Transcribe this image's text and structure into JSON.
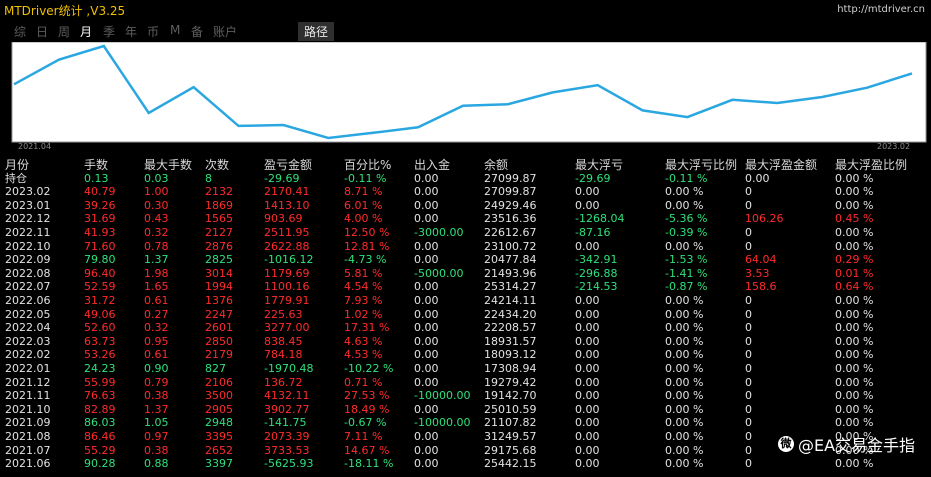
{
  "app": {
    "title": "MTDriver统计 ,V3.25",
    "url": "http://mtdriver.cn"
  },
  "tabs": [
    "综",
    "日",
    "周",
    "月",
    "季",
    "年",
    "币",
    "M",
    "备",
    "账户"
  ],
  "active_tab": "月",
  "path_tab": "路径",
  "chart": {
    "start_label": "2021.04",
    "end_label": "2023.02",
    "line_color": "#2aa7e0"
  },
  "table": {
    "headers": [
      "月份",
      "手数",
      "最大手数",
      "次数",
      "盈亏金额",
      "百分比%",
      "出入金",
      "余额",
      "最大浮亏",
      "最大浮亏比例",
      "最大浮盈金额",
      "最大浮盈比例"
    ],
    "position_row": {
      "label": "持仓",
      "lots": "0.13",
      "max_lots": "0.03",
      "count": "8",
      "pl": "-29.69",
      "pct": "-0.11 %",
      "inout": "0.00",
      "balance": "27099.87",
      "max_dd": "-29.69",
      "max_dd_pct": "-0.11 %",
      "max_fp": "0.00",
      "max_fp_pct": "0.00 %"
    },
    "rows": [
      {
        "month": "2023.02",
        "lots": "40.79",
        "max_lots": "1.00",
        "count": "2132",
        "pl": "2170.41",
        "pct": "8.71 %",
        "inout": "0.00",
        "balance": "27099.87",
        "max_dd": "0.00",
        "max_dd_pct": "0.00 %",
        "max_fp": "0",
        "max_fp_pct": "0.00 %",
        "tone": "red"
      },
      {
        "month": "2023.01",
        "lots": "39.26",
        "max_lots": "0.30",
        "count": "1869",
        "pl": "1413.10",
        "pct": "6.01 %",
        "inout": "0.00",
        "balance": "24929.46",
        "max_dd": "0.00",
        "max_dd_pct": "0.00 %",
        "max_fp": "0",
        "max_fp_pct": "0.00 %",
        "tone": "red"
      },
      {
        "month": "2022.12",
        "lots": "31.69",
        "max_lots": "0.43",
        "count": "1565",
        "pl": "903.69",
        "pct": "4.00 %",
        "inout": "0.00",
        "balance": "23516.36",
        "max_dd": "-1268.04",
        "max_dd_pct": "-5.36 %",
        "max_fp": "106.26",
        "max_fp_pct": "0.45 %",
        "tone": "red"
      },
      {
        "month": "2022.11",
        "lots": "41.93",
        "max_lots": "0.32",
        "count": "2127",
        "pl": "2511.95",
        "pct": "12.50 %",
        "inout": "-3000.00",
        "balance": "22612.67",
        "max_dd": "-87.16",
        "max_dd_pct": "-0.39 %",
        "max_fp": "0",
        "max_fp_pct": "0.00 %",
        "tone": "red"
      },
      {
        "month": "2022.10",
        "lots": "71.60",
        "max_lots": "0.78",
        "count": "2876",
        "pl": "2622.88",
        "pct": "12.81 %",
        "inout": "0.00",
        "balance": "23100.72",
        "max_dd": "0.00",
        "max_dd_pct": "0.00 %",
        "max_fp": "0",
        "max_fp_pct": "0.00 %",
        "tone": "red"
      },
      {
        "month": "2022.09",
        "lots": "79.80",
        "max_lots": "1.37",
        "count": "2825",
        "pl": "-1016.12",
        "pct": "-4.73 %",
        "inout": "0.00",
        "balance": "20477.84",
        "max_dd": "-342.91",
        "max_dd_pct": "-1.53 %",
        "max_fp": "64.04",
        "max_fp_pct": "0.29 %",
        "tone": "green"
      },
      {
        "month": "2022.08",
        "lots": "96.40",
        "max_lots": "1.98",
        "count": "3014",
        "pl": "1179.69",
        "pct": "5.81 %",
        "inout": "-5000.00",
        "balance": "21493.96",
        "max_dd": "-296.88",
        "max_dd_pct": "-1.41 %",
        "max_fp": "3.53",
        "max_fp_pct": "0.01 %",
        "tone": "red"
      },
      {
        "month": "2022.07",
        "lots": "52.59",
        "max_lots": "1.65",
        "count": "1994",
        "pl": "1100.16",
        "pct": "4.54 %",
        "inout": "0.00",
        "balance": "25314.27",
        "max_dd": "-214.53",
        "max_dd_pct": "-0.87 %",
        "max_fp": "158.6",
        "max_fp_pct": "0.64 %",
        "tone": "red"
      },
      {
        "month": "2022.06",
        "lots": "31.72",
        "max_lots": "0.61",
        "count": "1376",
        "pl": "1779.91",
        "pct": "7.93 %",
        "inout": "0.00",
        "balance": "24214.11",
        "max_dd": "0.00",
        "max_dd_pct": "0.00 %",
        "max_fp": "0",
        "max_fp_pct": "0.00 %",
        "tone": "red"
      },
      {
        "month": "2022.05",
        "lots": "49.06",
        "max_lots": "0.27",
        "count": "2247",
        "pl": "225.63",
        "pct": "1.02 %",
        "inout": "0.00",
        "balance": "22434.20",
        "max_dd": "0.00",
        "max_dd_pct": "0.00 %",
        "max_fp": "0",
        "max_fp_pct": "0.00 %",
        "tone": "red"
      },
      {
        "month": "2022.04",
        "lots": "52.60",
        "max_lots": "0.32",
        "count": "2601",
        "pl": "3277.00",
        "pct": "17.31 %",
        "inout": "0.00",
        "balance": "22208.57",
        "max_dd": "0.00",
        "max_dd_pct": "0.00 %",
        "max_fp": "0",
        "max_fp_pct": "0.00 %",
        "tone": "red"
      },
      {
        "month": "2022.03",
        "lots": "63.73",
        "max_lots": "0.95",
        "count": "2850",
        "pl": "838.45",
        "pct": "4.63 %",
        "inout": "0.00",
        "balance": "18931.57",
        "max_dd": "0.00",
        "max_dd_pct": "0.00 %",
        "max_fp": "0",
        "max_fp_pct": "0.00 %",
        "tone": "red"
      },
      {
        "month": "2022.02",
        "lots": "53.26",
        "max_lots": "0.61",
        "count": "2179",
        "pl": "784.18",
        "pct": "4.53 %",
        "inout": "0.00",
        "balance": "18093.12",
        "max_dd": "0.00",
        "max_dd_pct": "0.00 %",
        "max_fp": "0",
        "max_fp_pct": "0.00 %",
        "tone": "red"
      },
      {
        "month": "2022.01",
        "lots": "24.23",
        "max_lots": "0.90",
        "count": "827",
        "pl": "-1970.48",
        "pct": "-10.22 %",
        "inout": "0.00",
        "balance": "17308.94",
        "max_dd": "0.00",
        "max_dd_pct": "0.00 %",
        "max_fp": "0",
        "max_fp_pct": "0.00 %",
        "tone": "green"
      },
      {
        "month": "2021.12",
        "lots": "55.99",
        "max_lots": "0.79",
        "count": "2106",
        "pl": "136.72",
        "pct": "0.71 %",
        "inout": "0.00",
        "balance": "19279.42",
        "max_dd": "0.00",
        "max_dd_pct": "0.00 %",
        "max_fp": "0",
        "max_fp_pct": "0.00 %",
        "tone": "red"
      },
      {
        "month": "2021.11",
        "lots": "76.63",
        "max_lots": "0.38",
        "count": "3500",
        "pl": "4132.11",
        "pct": "27.53 %",
        "inout": "-10000.00",
        "balance": "19142.70",
        "max_dd": "0.00",
        "max_dd_pct": "0.00 %",
        "max_fp": "0",
        "max_fp_pct": "0.00 %",
        "tone": "red"
      },
      {
        "month": "2021.10",
        "lots": "82.89",
        "max_lots": "1.37",
        "count": "2905",
        "pl": "3902.77",
        "pct": "18.49 %",
        "inout": "0.00",
        "balance": "25010.59",
        "max_dd": "0.00",
        "max_dd_pct": "0.00 %",
        "max_fp": "0",
        "max_fp_pct": "0.00 %",
        "tone": "red"
      },
      {
        "month": "2021.09",
        "lots": "86.03",
        "max_lots": "1.05",
        "count": "2948",
        "pl": "-141.75",
        "pct": "-0.67 %",
        "inout": "-10000.00",
        "balance": "21107.82",
        "max_dd": "0.00",
        "max_dd_pct": "0.00 %",
        "max_fp": "0",
        "max_fp_pct": "0.00 %",
        "tone": "green"
      },
      {
        "month": "2021.08",
        "lots": "86.46",
        "max_lots": "0.97",
        "count": "3395",
        "pl": "2073.39",
        "pct": "7.11 %",
        "inout": "0.00",
        "balance": "31249.57",
        "max_dd": "0.00",
        "max_dd_pct": "0.00 %",
        "max_fp": "0",
        "max_fp_pct": "0.00 %",
        "tone": "red"
      },
      {
        "month": "2021.07",
        "lots": "55.29",
        "max_lots": "0.38",
        "count": "2652",
        "pl": "3733.53",
        "pct": "14.67 %",
        "inout": "0.00",
        "balance": "29175.68",
        "max_dd": "0.00",
        "max_dd_pct": "0.00 %",
        "max_fp": "0",
        "max_fp_pct": "0.00 %",
        "tone": "red"
      },
      {
        "month": "2021.06",
        "lots": "90.28",
        "max_lots": "0.88",
        "count": "3397",
        "pl": "-5625.93",
        "pct": "-18.11 %",
        "inout": "0.00",
        "balance": "25442.15",
        "max_dd": "0.00",
        "max_dd_pct": "0.00 %",
        "max_fp": "0",
        "max_fp_pct": "0.00 %",
        "tone": "green"
      }
    ]
  },
  "watermark": {
    "icon": "weibo-icon",
    "text": "@EA交易金手指"
  }
}
